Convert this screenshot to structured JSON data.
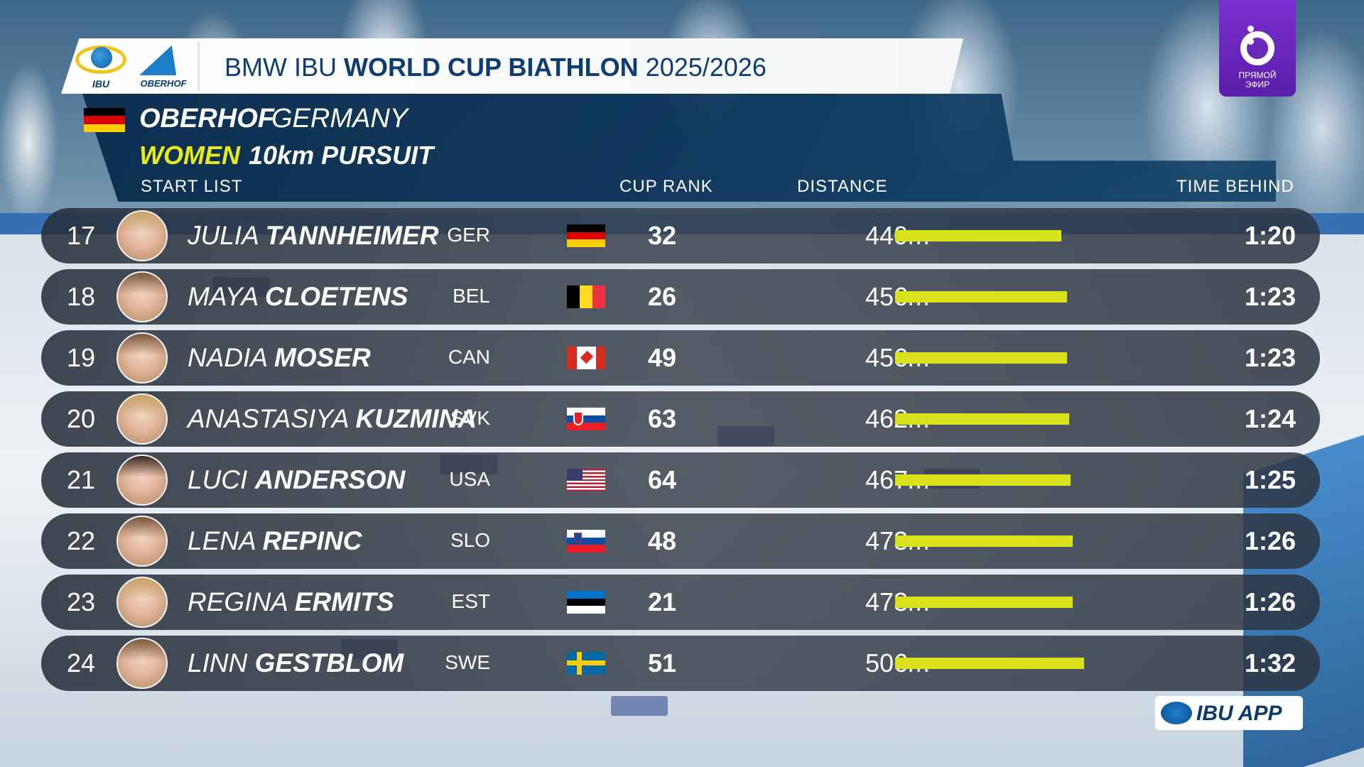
{
  "header": {
    "title_prefix": "BMW IBU",
    "title_bold": "WORLD CUP BIATHLON",
    "title_season": "2025/2026",
    "ibu_logo_text": "IBU",
    "oberhof_logo_text": "OBERHOF"
  },
  "event": {
    "city": "OBERHOF",
    "country": "GERMANY",
    "gender": "WOMEN",
    "race": "10km  PURSUIT"
  },
  "columns": {
    "start_list": "START  LIST",
    "cup_rank": "CUP  RANK",
    "distance": "DISTANCE",
    "time_behind": "TIME  BEHIND"
  },
  "rows": [
    {
      "num": "17",
      "first": "JULIA",
      "last": "TANNHEIMER",
      "nat": "GER",
      "flag": "ger",
      "rank": "32",
      "distance": "440m",
      "bar_fraction": 0.88,
      "time": "1:20",
      "hair": "light"
    },
    {
      "num": "18",
      "first": "MAYA",
      "last": "CLOETENS",
      "nat": "BEL",
      "flag": "bel",
      "rank": "26",
      "distance": "456m",
      "bar_fraction": 0.91,
      "time": "1:23",
      "hair": "mid"
    },
    {
      "num": "19",
      "first": "NADIA",
      "last": "MOSER",
      "nat": "CAN",
      "flag": "can",
      "rank": "49",
      "distance": "456m",
      "bar_fraction": 0.91,
      "time": "1:23",
      "hair": "mid"
    },
    {
      "num": "20",
      "first": "ANASTASIYA",
      "last": "KUZMINA",
      "nat": "SVK",
      "flag": "svk",
      "rank": "63",
      "distance": "462m",
      "bar_fraction": 0.92,
      "time": "1:24",
      "hair": "light"
    },
    {
      "num": "21",
      "first": "LUCI",
      "last": "ANDERSON",
      "nat": "USA",
      "flag": "usa",
      "rank": "64",
      "distance": "467m",
      "bar_fraction": 0.93,
      "time": "1:25",
      "hair": "dark"
    },
    {
      "num": "22",
      "first": "LENA",
      "last": "REPINC",
      "nat": "SLO",
      "flag": "slo",
      "rank": "48",
      "distance": "473m",
      "bar_fraction": 0.94,
      "time": "1:26",
      "hair": "mid"
    },
    {
      "num": "23",
      "first": "REGINA",
      "last": "ERMITS",
      "nat": "EST",
      "flag": "est",
      "rank": "21",
      "distance": "473m",
      "bar_fraction": 0.94,
      "time": "1:26",
      "hair": "light"
    },
    {
      "num": "24",
      "first": "LINN",
      "last": "GESTBLOM",
      "nat": "SWE",
      "flag": "swe",
      "rank": "51",
      "distance": "506m",
      "bar_fraction": 1.0,
      "time": "1:32",
      "hair": "mid"
    }
  ],
  "live_badge": {
    "line1": "ПРЯМОЙ",
    "line2": "ЭФИР"
  },
  "app_badge": {
    "label": "IBU APP"
  },
  "colors": {
    "accent_yellow": "#e8ea1c",
    "bar_yellow": "#d9e21a",
    "panel_navy": "#0a2d4e",
    "live_purple": "#6b26c0"
  }
}
